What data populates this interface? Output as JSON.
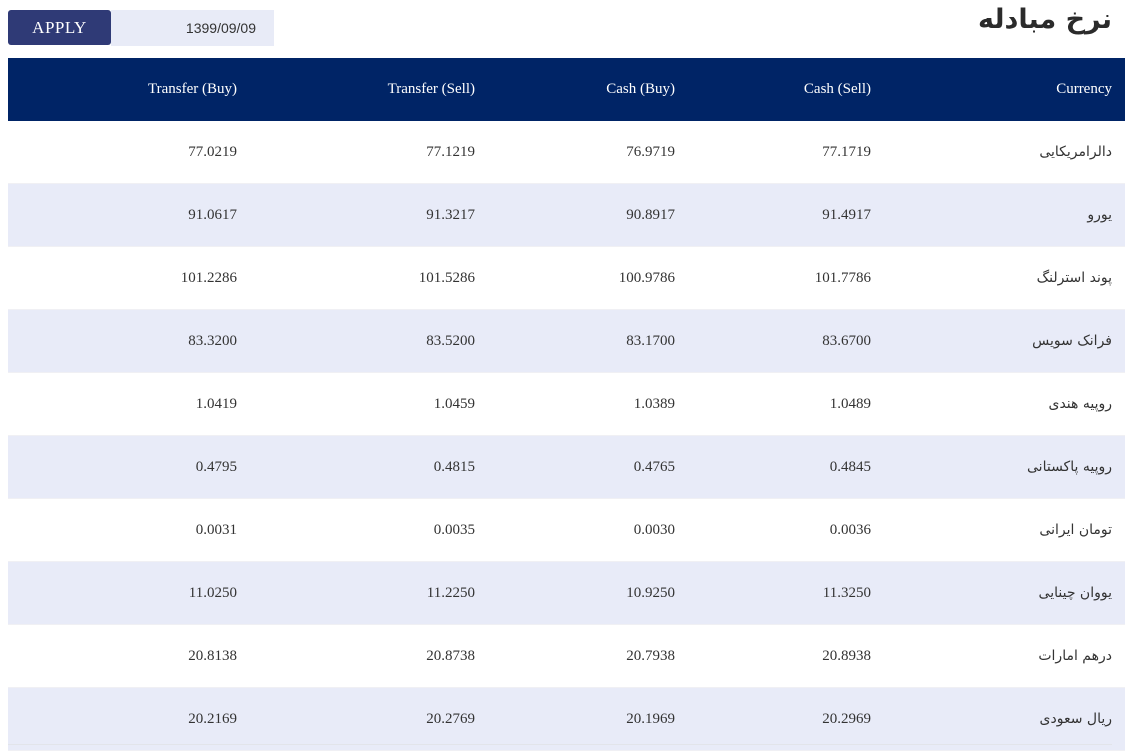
{
  "header": {
    "title": "نرخ مبادله",
    "apply_label": "APPLY",
    "date_value": "1399/09/09"
  },
  "table": {
    "columns": {
      "transfer_buy": "Transfer (Buy)",
      "transfer_sell": "Transfer (Sell)",
      "cash_buy": "Cash (Buy)",
      "cash_sell": "Cash (Sell)",
      "currency": "Currency"
    },
    "rows": [
      {
        "currency": "دالرامریکایی",
        "cash_sell": "77.1719",
        "cash_buy": "76.9719",
        "transfer_sell": "77.1219",
        "transfer_buy": "77.0219"
      },
      {
        "currency": "یورو",
        "cash_sell": "91.4917",
        "cash_buy": "90.8917",
        "transfer_sell": "91.3217",
        "transfer_buy": "91.0617"
      },
      {
        "currency": "پوند استرلنگ",
        "cash_sell": "101.7786",
        "cash_buy": "100.9786",
        "transfer_sell": "101.5286",
        "transfer_buy": "101.2286"
      },
      {
        "currency": "فرانک سویس",
        "cash_sell": "83.6700",
        "cash_buy": "83.1700",
        "transfer_sell": "83.5200",
        "transfer_buy": "83.3200"
      },
      {
        "currency": "روپیه هندی",
        "cash_sell": "1.0489",
        "cash_buy": "1.0389",
        "transfer_sell": "1.0459",
        "transfer_buy": "1.0419"
      },
      {
        "currency": "روپیه پاکستانی",
        "cash_sell": "0.4845",
        "cash_buy": "0.4765",
        "transfer_sell": "0.4815",
        "transfer_buy": "0.4795"
      },
      {
        "currency": "تومان ایرانی",
        "cash_sell": "0.0036",
        "cash_buy": "0.0030",
        "transfer_sell": "0.0035",
        "transfer_buy": "0.0031"
      },
      {
        "currency": "یووان چینایی",
        "cash_sell": "11.3250",
        "cash_buy": "10.9250",
        "transfer_sell": "11.2250",
        "transfer_buy": "11.0250"
      },
      {
        "currency": "درهم امارات",
        "cash_sell": "20.8938",
        "cash_buy": "20.7938",
        "transfer_sell": "20.8738",
        "transfer_buy": "20.8138"
      },
      {
        "currency": "ریال سعودی",
        "cash_sell": "20.2969",
        "cash_buy": "20.1969",
        "transfer_sell": "20.2769",
        "transfer_buy": "20.2169"
      }
    ]
  },
  "colors": {
    "header_bg": "#002466",
    "apply_bg": "#2f3a76",
    "stripe_bg": "#e8ebf8",
    "date_bg": "#e8ebf7"
  }
}
